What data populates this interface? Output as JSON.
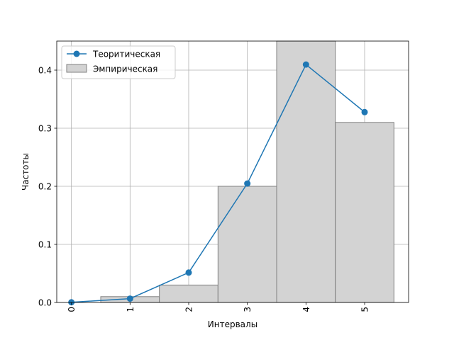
{
  "chart_data": {
    "type": "bar+line",
    "xlabel": "Интервалы",
    "ylabel": "Частоты",
    "xlim": [
      -0.25,
      5.75
    ],
    "ylim": [
      0,
      0.45
    ],
    "grid": true,
    "legend_position": "top-left",
    "x_tick_labels": [
      "0",
      "1",
      "2",
      "3",
      "4",
      "5"
    ],
    "x_tick_rotation": 90,
    "y_tick_labels": [
      "0.0",
      "0.1",
      "0.2",
      "0.3",
      "0.4"
    ],
    "y_ticks": [
      0,
      0.1,
      0.2,
      0.3,
      0.4
    ],
    "x_ticks": [
      0,
      1,
      2,
      3,
      4,
      5
    ],
    "series": [
      {
        "name": "Теоритическая",
        "kind": "line",
        "marker": "circle",
        "color": "#1f77b4",
        "x": [
          0,
          1,
          2,
          3,
          4,
          5
        ],
        "y": [
          0.0003,
          0.0066,
          0.0515,
          0.2048,
          0.4096,
          0.3277
        ]
      },
      {
        "name": "Эмпирическая",
        "kind": "bar",
        "color": "#d3d3d3",
        "edge_color": "#808080",
        "bins": [
          {
            "from": 0.5,
            "to": 1.5,
            "value": 0.01
          },
          {
            "from": 1.5,
            "to": 2.5,
            "value": 0.03
          },
          {
            "from": 2.5,
            "to": 3.5,
            "value": 0.2
          },
          {
            "from": 3.5,
            "to": 4.5,
            "value": 0.45
          },
          {
            "from": 4.5,
            "to": 5.5,
            "value": 0.31
          }
        ]
      }
    ]
  }
}
